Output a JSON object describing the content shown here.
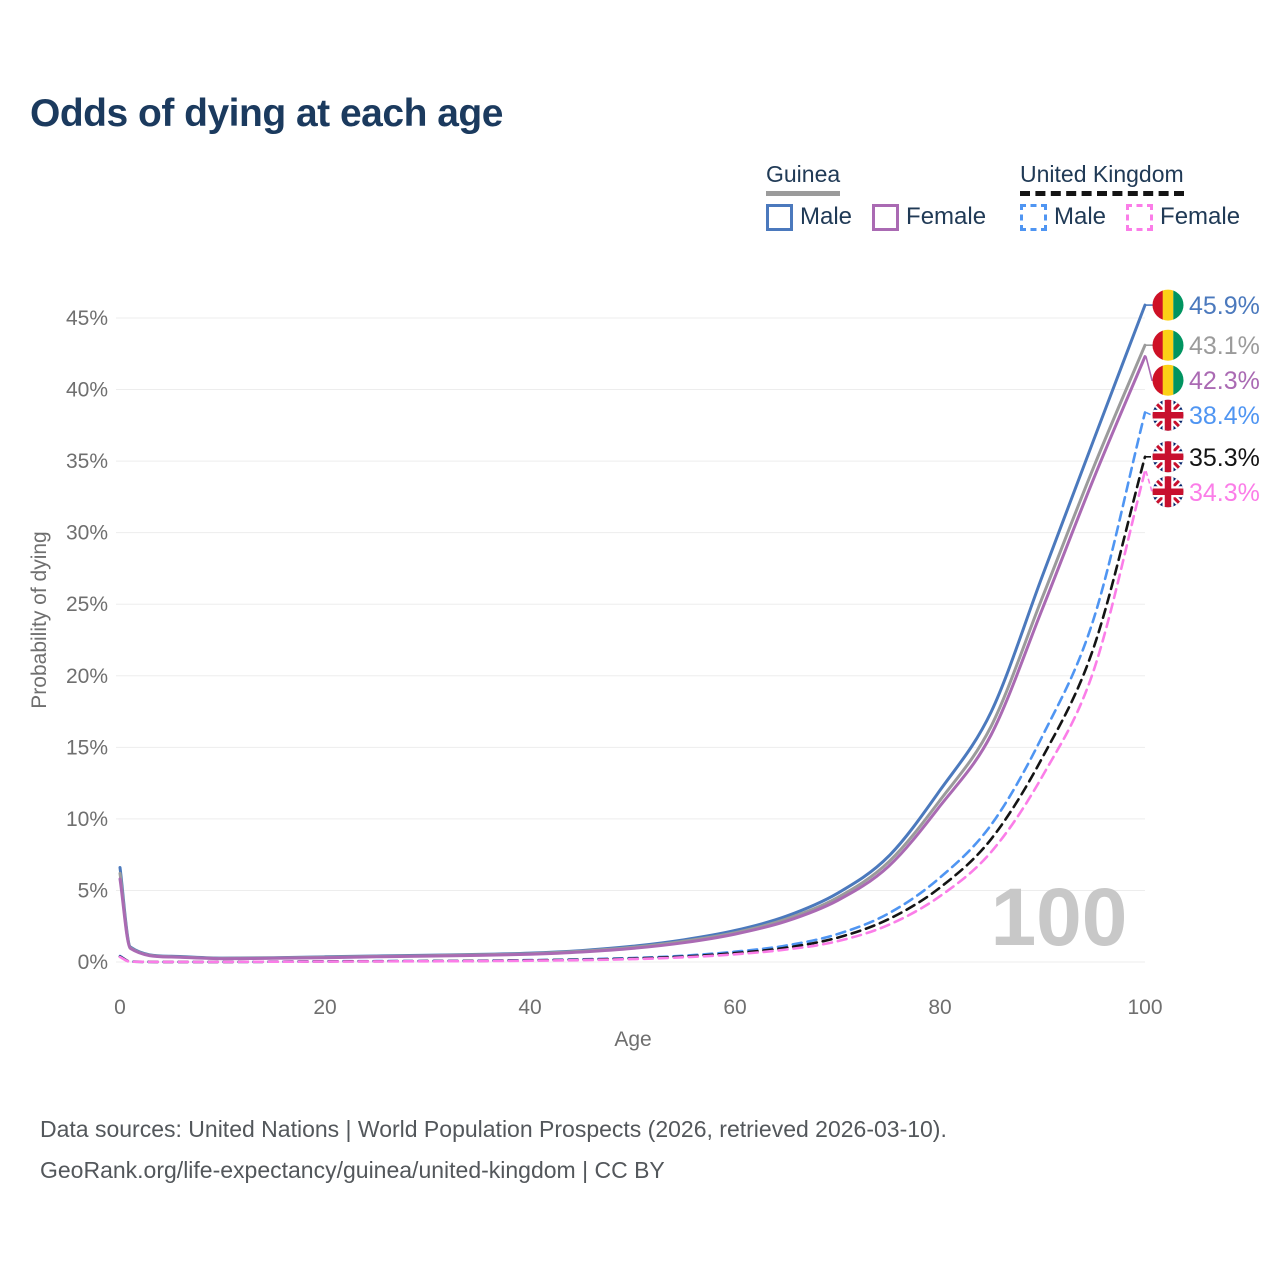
{
  "title": "Odds of dying at each age",
  "colors": {
    "title": "#1b3a5e",
    "legend_text": "#203a56",
    "axis_text": "#6f6f6f",
    "grid": "#ededed",
    "watermark": "#c8c8c8",
    "footer_text": "#53575b",
    "guinea_male": "#4b79bd",
    "guinea_all": "#9b9b9b",
    "guinea_female": "#aa6ab3",
    "uk_male": "#4f95f2",
    "uk_all": "#141414",
    "uk_female": "#fb7de8"
  },
  "legend": {
    "groups": [
      {
        "label": "Guinea",
        "underline_style": "solid",
        "underline_color": "#9b9b9b",
        "items": [
          {
            "label": "Male",
            "color": "#4b79bd",
            "line_style": "solid"
          },
          {
            "label": "Female",
            "color": "#aa6ab3",
            "line_style": "solid"
          }
        ]
      },
      {
        "label": "United Kingdom",
        "underline_style": "dashed",
        "underline_color": "#141414",
        "items": [
          {
            "label": "Male",
            "color": "#4f95f2",
            "line_style": "dashed"
          },
          {
            "label": "Female",
            "color": "#fb7de8",
            "line_style": "dashed"
          }
        ]
      }
    ]
  },
  "chart_data": {
    "type": "line",
    "title": "Odds of dying at each age",
    "xlabel": "Age",
    "ylabel": "Probability of dying",
    "xlim": [
      0,
      100
    ],
    "ylim_percent": [
      0,
      46
    ],
    "grid": "horizontal-only",
    "legend_position": "top-right",
    "watermark": "100",
    "x_ticks": [
      {
        "v": 0,
        "label": "0"
      },
      {
        "v": 20,
        "label": "20"
      },
      {
        "v": 40,
        "label": "40"
      },
      {
        "v": 60,
        "label": "60"
      },
      {
        "v": 80,
        "label": "80"
      },
      {
        "v": 100,
        "label": "100"
      }
    ],
    "y_ticks": [
      {
        "v": 0,
        "label": "0%"
      },
      {
        "v": 5,
        "label": "5%"
      },
      {
        "v": 10,
        "label": "10%"
      },
      {
        "v": 15,
        "label": "15%"
      },
      {
        "v": 20,
        "label": "20%"
      },
      {
        "v": 25,
        "label": "25%"
      },
      {
        "v": 30,
        "label": "30%"
      },
      {
        "v": 35,
        "label": "35%"
      },
      {
        "v": 40,
        "label": "40%"
      },
      {
        "v": 45,
        "label": "45%"
      }
    ],
    "x": [
      0,
      1,
      5,
      10,
      15,
      20,
      25,
      30,
      35,
      40,
      45,
      50,
      55,
      60,
      65,
      70,
      75,
      80,
      85,
      90,
      95,
      100
    ],
    "series": [
      {
        "id": "guinea-male",
        "name": "Guinea Male",
        "color": "#4b79bd",
        "dash": "solid",
        "flag": "guinea",
        "end_label": "45.9%",
        "values": [
          6.6,
          1.05,
          0.4,
          0.27,
          0.3,
          0.36,
          0.42,
          0.47,
          0.53,
          0.62,
          0.8,
          1.1,
          1.55,
          2.2,
          3.2,
          4.8,
          7.4,
          12.0,
          17.5,
          27.0,
          36.5,
          45.9
        ]
      },
      {
        "id": "guinea-both-sexes",
        "name": "Guinea Both sexes",
        "color": "#9b9b9b",
        "dash": "solid",
        "flag": "guinea",
        "end_label": "43.1%",
        "values": [
          6.2,
          1.0,
          0.37,
          0.25,
          0.28,
          0.33,
          0.39,
          0.44,
          0.5,
          0.58,
          0.75,
          1.02,
          1.45,
          2.05,
          3.0,
          4.5,
          7.0,
          11.3,
          16.5,
          25.5,
          34.6,
          43.1
        ]
      },
      {
        "id": "guinea-female",
        "name": "Guinea Female",
        "color": "#aa6ab3",
        "dash": "solid",
        "flag": "guinea",
        "end_label": "42.3%",
        "values": [
          5.8,
          0.95,
          0.35,
          0.23,
          0.26,
          0.3,
          0.36,
          0.41,
          0.46,
          0.54,
          0.7,
          0.95,
          1.35,
          1.95,
          2.85,
          4.3,
          6.7,
          10.9,
          15.9,
          24.7,
          33.8,
          42.3
        ]
      },
      {
        "id": "uk-male",
        "name": "United Kingdom Male",
        "color": "#4f95f2",
        "dash": "dashed",
        "flag": "uk",
        "end_label": "38.4%",
        "values": [
          0.42,
          0.03,
          0.01,
          0.01,
          0.02,
          0.05,
          0.06,
          0.07,
          0.09,
          0.13,
          0.19,
          0.28,
          0.44,
          0.72,
          1.15,
          1.95,
          3.4,
          5.9,
          9.6,
          15.8,
          24.0,
          38.4
        ]
      },
      {
        "id": "uk-both-sexes",
        "name": "United Kingdom Both sexes",
        "color": "#141414",
        "dash": "dashed",
        "flag": "uk",
        "end_label": "35.3%",
        "values": [
          0.38,
          0.03,
          0.01,
          0.01,
          0.02,
          0.04,
          0.05,
          0.06,
          0.08,
          0.11,
          0.16,
          0.24,
          0.38,
          0.62,
          1.0,
          1.7,
          3.0,
          5.2,
          8.6,
          14.3,
          22.0,
          35.3
        ]
      },
      {
        "id": "uk-female",
        "name": "United Kingdom Female",
        "color": "#fb7de8",
        "dash": "dashed",
        "flag": "uk",
        "end_label": "34.3%",
        "values": [
          0.35,
          0.02,
          0.01,
          0.01,
          0.02,
          0.03,
          0.04,
          0.05,
          0.06,
          0.09,
          0.13,
          0.2,
          0.33,
          0.54,
          0.87,
          1.45,
          2.6,
          4.6,
          7.7,
          13.0,
          20.4,
          34.3
        ]
      }
    ]
  },
  "flags": {
    "guinea": {
      "red": "#ce1126",
      "yellow": "#fcd116",
      "green": "#009460"
    },
    "uk": {
      "navy": "#012169",
      "white": "#ffffff",
      "red": "#c8102e"
    }
  },
  "footer": {
    "line1": "Data sources: United Nations | World Population Prospects (2026, retrieved 2026-03-10).",
    "line2": "GeoRank.org/life-expectancy/guinea/united-kingdom | CC BY"
  }
}
